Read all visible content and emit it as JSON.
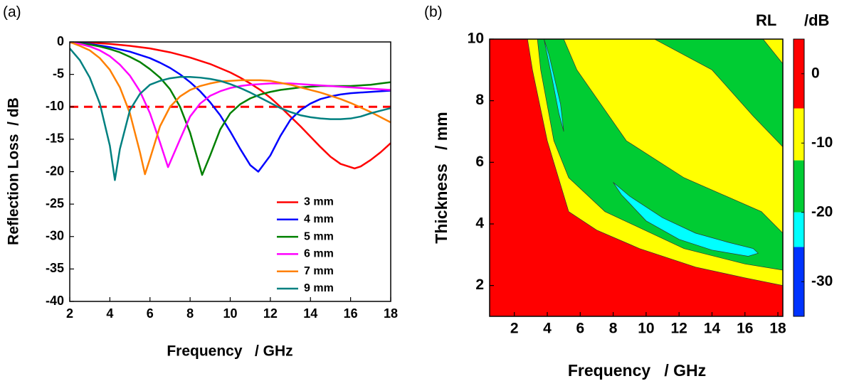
{
  "chart_data": [
    {
      "type": "line",
      "label": "(a)",
      "xlabel": "Frequency   / GHz",
      "ylabel": "Reflection Loss  / dB",
      "xlim": [
        2,
        18
      ],
      "ylim": [
        -40,
        0
      ],
      "xticks": [
        2,
        4,
        6,
        8,
        10,
        12,
        14,
        16,
        18
      ],
      "yticks": [
        0,
        -5,
        -10,
        -15,
        -20,
        -25,
        -30,
        -35,
        -40
      ],
      "legend": "lower right",
      "threshold": {
        "value": -10,
        "color": "#ff0000",
        "dashed": true
      },
      "series": [
        {
          "name": "3 mm",
          "color": "#ff0000",
          "x": [
            2,
            3,
            4,
            5,
            6,
            7,
            8,
            9,
            10,
            10.5,
            11,
            11.5,
            12,
            12.5,
            13,
            13.5,
            14,
            14.5,
            15,
            15.5,
            16.2,
            16.5,
            17,
            17.5,
            18
          ],
          "values": [
            0,
            -0.1,
            -0.3,
            -0.6,
            -1,
            -1.6,
            -2.4,
            -3.4,
            -4.7,
            -5.5,
            -6.4,
            -7.4,
            -8.6,
            -10,
            -11.5,
            -13,
            -14.6,
            -16.2,
            -17.7,
            -18.8,
            -19.5,
            -19.2,
            -18.2,
            -17,
            -15.6
          ]
        },
        {
          "name": "4 mm",
          "color": "#0000ff",
          "x": [
            2,
            3,
            4,
            5,
            6,
            6.5,
            7,
            7.5,
            8,
            8.5,
            9,
            9.5,
            10,
            10.5,
            11,
            11.4,
            12,
            12.5,
            13,
            13.5,
            14,
            14.5,
            15,
            15.5,
            16,
            16.5,
            17,
            17.5,
            18
          ],
          "values": [
            0,
            -0.3,
            -0.8,
            -1.5,
            -2.5,
            -3.2,
            -4,
            -5,
            -6.2,
            -7.6,
            -9.3,
            -11.3,
            -13.8,
            -16.5,
            -19,
            -20,
            -17.5,
            -14.5,
            -12,
            -10.5,
            -9.5,
            -8.8,
            -8.4,
            -8.1,
            -7.9,
            -7.8,
            -7.7,
            -7.6,
            -7.5
          ]
        },
        {
          "name": "5 mm",
          "color": "#008000",
          "x": [
            2,
            2.5,
            3,
            3.5,
            4,
            4.5,
            5,
            5.5,
            6,
            6.5,
            7,
            7.5,
            8,
            8.6,
            9,
            9.5,
            10,
            10.5,
            11,
            11.5,
            12,
            12.5,
            13,
            13.5,
            14,
            14.5,
            15,
            15.5,
            16,
            16.5,
            17,
            17.5,
            18
          ],
          "values": [
            0,
            -0.2,
            -0.4,
            -0.7,
            -1.1,
            -1.6,
            -2.3,
            -3.1,
            -4.2,
            -5.5,
            -7.3,
            -10,
            -14,
            -20.5,
            -17.5,
            -13.5,
            -11,
            -9.6,
            -8.7,
            -8.1,
            -7.7,
            -7.4,
            -7.2,
            -7,
            -6.9,
            -6.8,
            -6.8,
            -6.8,
            -6.8,
            -6.7,
            -6.6,
            -6.4,
            -6.2
          ]
        },
        {
          "name": "6 mm",
          "color": "#ff00ff",
          "x": [
            2,
            2.5,
            3,
            3.5,
            4,
            4.5,
            5,
            5.5,
            6,
            6.5,
            6.9,
            7.5,
            8,
            8.5,
            9,
            9.5,
            10,
            10.5,
            11,
            11.5,
            12,
            12.5,
            13,
            13.5,
            14,
            14.5,
            15,
            15.5,
            16,
            16.5,
            17,
            17.5,
            18
          ],
          "values": [
            -0.1,
            -0.3,
            -0.7,
            -1.3,
            -2.2,
            -3.5,
            -5.2,
            -7.6,
            -11,
            -15.5,
            -19.3,
            -15,
            -11.5,
            -9.5,
            -8.3,
            -7.6,
            -7.1,
            -6.8,
            -6.6,
            -6.5,
            -6.4,
            -6.4,
            -6.4,
            -6.5,
            -6.6,
            -6.7,
            -6.8,
            -6.9,
            -7,
            -7.1,
            -7.2,
            -7.3,
            -7.4
          ]
        },
        {
          "name": "7 mm",
          "color": "#ff8000",
          "x": [
            2,
            2.5,
            3,
            3.5,
            4,
            4.5,
            5,
            5.5,
            5.75,
            6,
            6.5,
            7,
            7.5,
            8,
            8.5,
            9,
            9.5,
            10,
            10.5,
            11,
            11.5,
            12,
            12.5,
            13,
            13.5,
            14,
            14.5,
            15,
            15.5,
            16,
            16.5,
            17,
            17.5,
            18
          ],
          "values": [
            0,
            -0.6,
            -1.3,
            -2.5,
            -4.3,
            -7,
            -11,
            -17,
            -20.4,
            -18,
            -13,
            -10,
            -8.4,
            -7.4,
            -6.8,
            -6.4,
            -6.1,
            -6,
            -5.9,
            -5.9,
            -5.9,
            -6,
            -6.3,
            -6.6,
            -7,
            -7.4,
            -7.8,
            -8.3,
            -8.8,
            -9.4,
            -10.1,
            -10.8,
            -11.6,
            -12.4
          ]
        },
        {
          "name": "9 mm",
          "color": "#008080",
          "x": [
            2,
            2.5,
            3,
            3.5,
            4,
            4.25,
            4.5,
            5,
            5.5,
            6,
            6.5,
            7,
            7.5,
            8,
            8.5,
            9,
            9.5,
            10,
            10.5,
            11,
            11.5,
            12,
            12.5,
            13,
            13.5,
            14,
            14.5,
            15,
            15.5,
            16,
            16.5,
            17,
            17.5,
            18
          ],
          "values": [
            -1,
            -2.8,
            -5.5,
            -9.5,
            -16,
            -21.3,
            -16.5,
            -10.5,
            -8,
            -6.6,
            -6,
            -5.6,
            -5.4,
            -5.4,
            -5.5,
            -5.7,
            -6,
            -6.5,
            -7.1,
            -7.8,
            -8.6,
            -9.4,
            -10.2,
            -10.8,
            -11.3,
            -11.6,
            -11.8,
            -11.9,
            -11.9,
            -11.8,
            -11.5,
            -11,
            -10.6,
            -10.2
          ]
        }
      ]
    },
    {
      "type": "contour",
      "label": "(b)",
      "xlabel": "Frequency   / GHz",
      "ylabel": "Thickness   / mm",
      "xlim": [
        0.5,
        18.3
      ],
      "ylim": [
        1,
        10
      ],
      "xticks": [
        2,
        4,
        6,
        8,
        10,
        12,
        14,
        16,
        18
      ],
      "yticks": [
        2,
        4,
        6,
        8,
        10
      ],
      "colorbar": {
        "title": "RL",
        "unit": "/dB",
        "levels": [
          5,
          -5,
          -12.5,
          -20,
          -25,
          -35
        ],
        "colors": [
          "#ff0000",
          "#ffff00",
          "#00cc33",
          "#00ffff",
          "#0033ff"
        ],
        "ticks": [
          0,
          -10,
          -20,
          -30
        ]
      },
      "regions": [
        {
          "below": -5,
          "x": [
            2.8,
            3.1,
            4,
            5.3,
            7,
            9.6,
            13,
            16,
            18.3,
            18.3
          ],
          "y": [
            10,
            9,
            6.7,
            4.4,
            3.8,
            3.2,
            2.6,
            2.25,
            2.0,
            10
          ]
        },
        {
          "below": -12.5,
          "x": [
            3.4,
            3.6,
            4.4,
            5.3,
            7.5,
            12.3,
            16,
            18.3,
            18.3,
            17,
            12.3,
            8.8,
            5.8,
            5.0
          ],
          "y": [
            10,
            9,
            6.7,
            5.5,
            4.4,
            3.2,
            2.7,
            2.5,
            3.7,
            4.4,
            5.5,
            6.7,
            9,
            10
          ]
        },
        {
          "below": -12.5,
          "x": [
            10.5,
            14,
            16.5,
            18.3,
            18.3
          ],
          "y": [
            10,
            9,
            7.5,
            6.5,
            10
          ]
        },
        {
          "below": -5,
          "x": [
            17.1,
            18.3,
            18.3
          ],
          "y": [
            10,
            9.2,
            10
          ]
        },
        {
          "below": -20,
          "x": [
            3.8,
            4.1,
            4.8,
            5.0,
            4.7,
            4.3
          ],
          "y": [
            10,
            9.5,
            7.9,
            7.0,
            7.6,
            8.7
          ]
        },
        {
          "below": -20,
          "x": [
            8,
            9,
            11,
            13,
            15,
            16.5,
            16.8,
            16.2,
            14,
            12,
            10,
            8.5
          ],
          "y": [
            5.35,
            4.9,
            4.2,
            3.7,
            3.4,
            3.2,
            3.05,
            2.95,
            3.15,
            3.5,
            4.1,
            4.95
          ]
        }
      ]
    }
  ]
}
